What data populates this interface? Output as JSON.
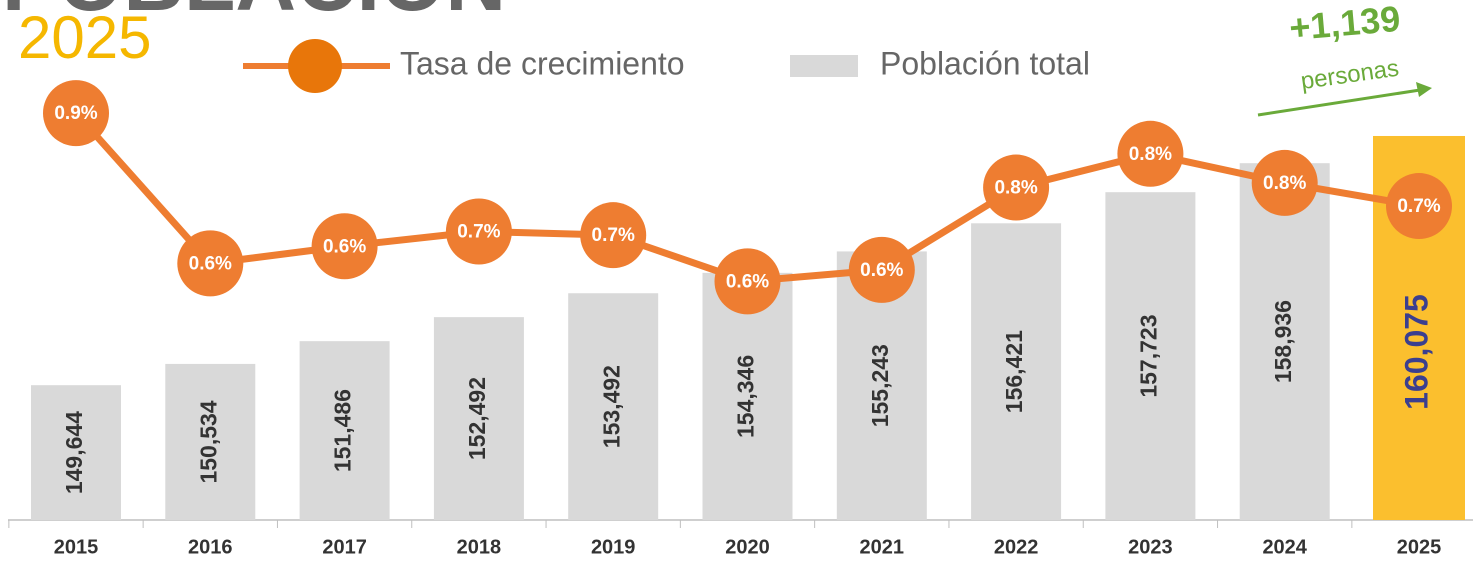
{
  "chart_data": {
    "type": "bar_line",
    "title": "POBLACIÓN",
    "subtitle": "2025",
    "categories": [
      "2015",
      "2016",
      "2017",
      "2018",
      "2019",
      "2020",
      "2021",
      "2022",
      "2023",
      "2024",
      "2025"
    ],
    "series": [
      {
        "name": "Población total",
        "type": "bar",
        "color": "#d9d9d9",
        "colors": [
          "#d9d9d9",
          "#d9d9d9",
          "#d9d9d9",
          "#d9d9d9",
          "#d9d9d9",
          "#d9d9d9",
          "#d9d9d9",
          "#d9d9d9",
          "#d9d9d9",
          "#d9d9d9",
          "#fbbf2e"
        ],
        "label_colors": [
          "#333333",
          "#333333",
          "#333333",
          "#333333",
          "#333333",
          "#333333",
          "#333333",
          "#333333",
          "#333333",
          "#333333",
          "#3b3f8f"
        ],
        "values": [
          149644,
          150534,
          151486,
          152492,
          153492,
          154346,
          155243,
          156421,
          157723,
          158936,
          160075
        ],
        "value_labels": [
          "149,644",
          "150,534",
          "151,486",
          "152,492",
          "153,492",
          "154,346",
          "155,243",
          "156,421",
          "157,723",
          "158,936",
          "160,075"
        ]
      },
      {
        "name": "Tasa de crecimiento",
        "type": "line",
        "axis": "y2",
        "color": "#ee7d31",
        "marker_color": "#e8760a",
        "values": [
          0.92,
          0.595,
          0.632,
          0.664,
          0.656,
          0.556,
          0.581,
          0.759,
          0.832,
          0.769,
          0.719
        ],
        "value_labels": [
          "0.9%",
          "0.6%",
          "0.6%",
          "0.7%",
          "0.7%",
          "0.6%",
          "0.6%",
          "0.8%",
          "0.8%",
          "0.8%",
          "0.7%"
        ]
      }
    ],
    "ylim": [
      144000,
      162000
    ],
    "y2lim": [
      0.04,
      0.97
    ],
    "annotations": [
      {
        "text": "+1,139",
        "color": "#6aaa3a"
      },
      {
        "text": "personas",
        "color": "#6aaa3a"
      }
    ]
  }
}
